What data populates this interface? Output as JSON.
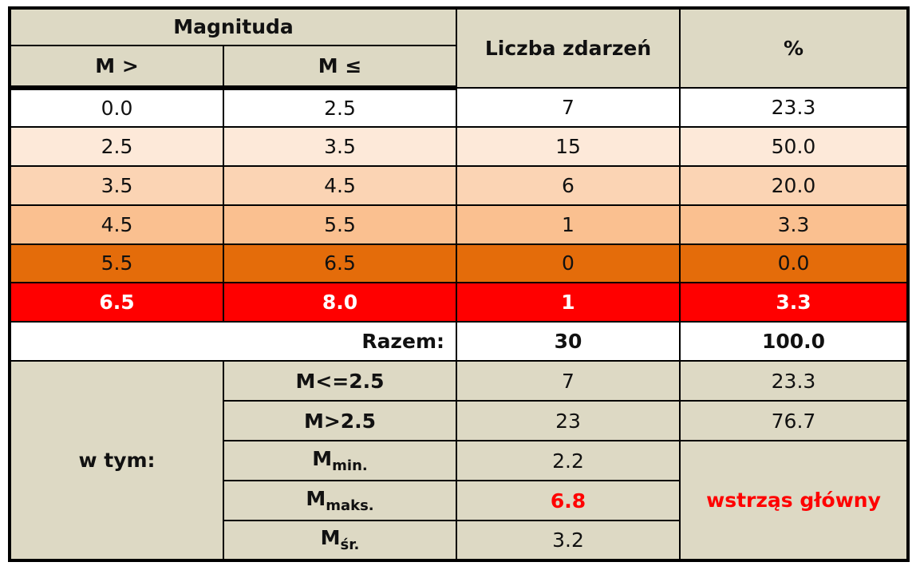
{
  "header": {
    "magnitude": "Magnituda",
    "m_gt": "M >",
    "m_le": "M ≤",
    "count": "Liczba zdarzeń",
    "percent": "%"
  },
  "rows": [
    [
      "0.0",
      "2.5",
      "7",
      "23.3"
    ],
    [
      "2.5",
      "3.5",
      "15",
      "50.0"
    ],
    [
      "3.5",
      "4.5",
      "6",
      "20.0"
    ],
    [
      "4.5",
      "5.5",
      "1",
      "3.3"
    ],
    [
      "5.5",
      "6.5",
      "0",
      "0.0"
    ],
    [
      "6.5",
      "8.0",
      "1",
      "3.3"
    ]
  ],
  "total": {
    "label": "Razem:",
    "count": "30",
    "percent": "100.0"
  },
  "summary": {
    "label": "w tym:",
    "rows": [
      {
        "label": "M<=2.5",
        "value": "7",
        "percent": "23.3"
      },
      {
        "label": "M>2.5",
        "value": "23",
        "percent": "76.7"
      },
      {
        "label": "M",
        "sub": "min.",
        "value": "2.2"
      },
      {
        "label": "M",
        "sub": "maks.",
        "value": "6.8"
      },
      {
        "label": "M",
        "sub": "śr.",
        "value": "3.2"
      }
    ],
    "note": "wstrząs główny"
  }
}
